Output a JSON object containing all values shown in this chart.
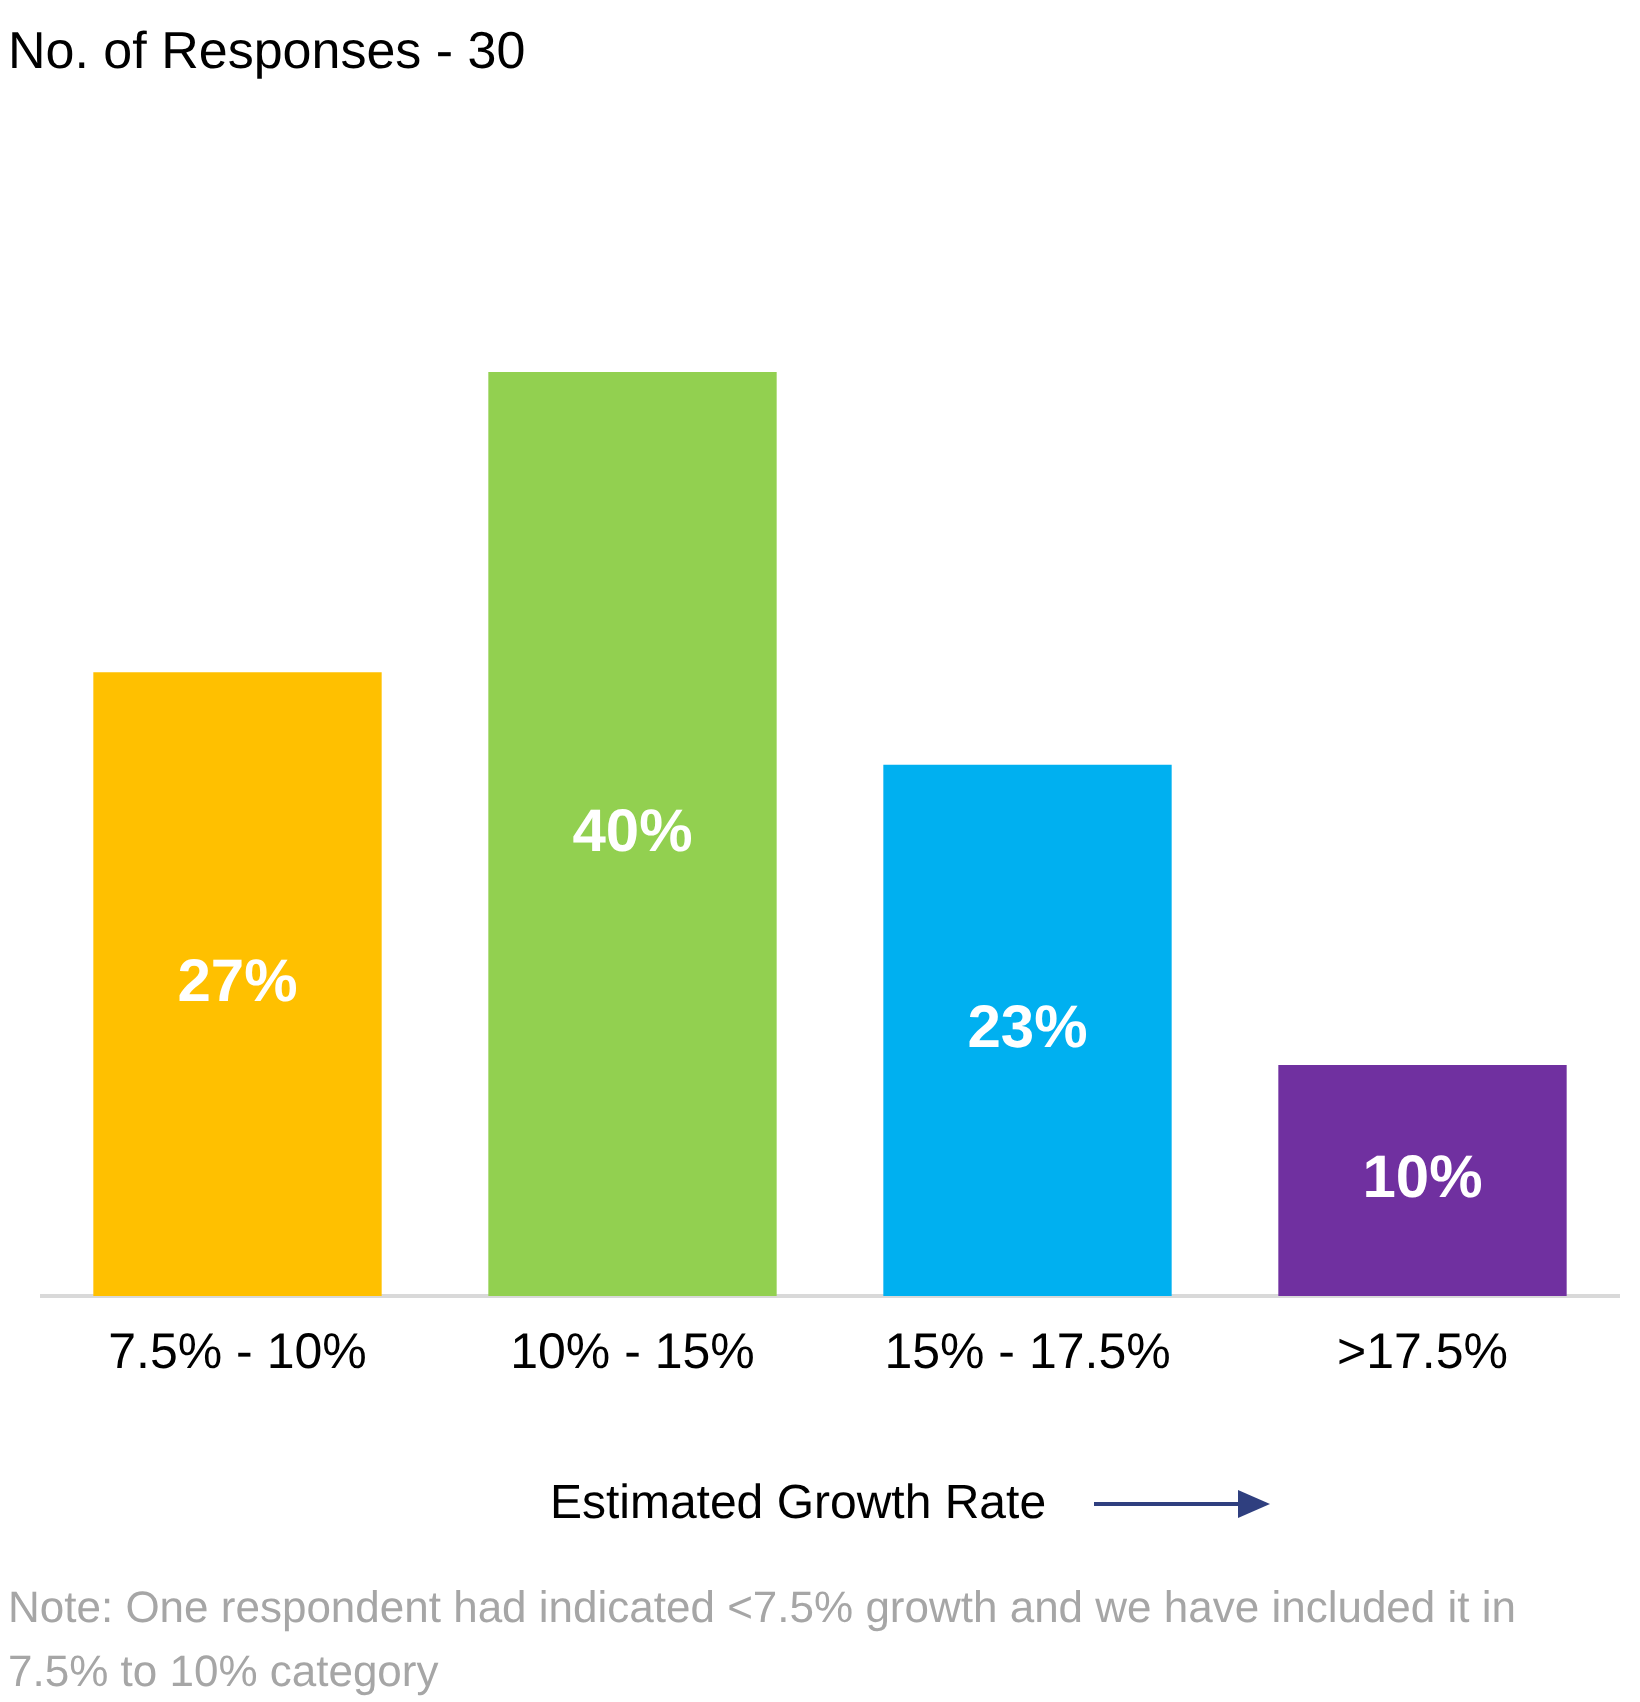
{
  "chart_data": {
    "type": "bar",
    "title": "No. of Responses - 30",
    "xlabel": "Estimated Growth Rate",
    "categories": [
      "7.5% - 10%",
      "10% - 15%",
      "15% - 17.5%",
      ">17.5%"
    ],
    "values": [
      27,
      40,
      23,
      10
    ],
    "colors": [
      "#ffc000",
      "#92d050",
      "#00b0f0",
      "#7030a0"
    ],
    "value_labels": [
      "27%",
      "40%",
      "23%",
      "10%"
    ],
    "grid": false,
    "legend": false,
    "annotations": [
      "Note: One respondent had indicated <7.5% growth and we have included it in 7.5% to 10% category"
    ]
  }
}
